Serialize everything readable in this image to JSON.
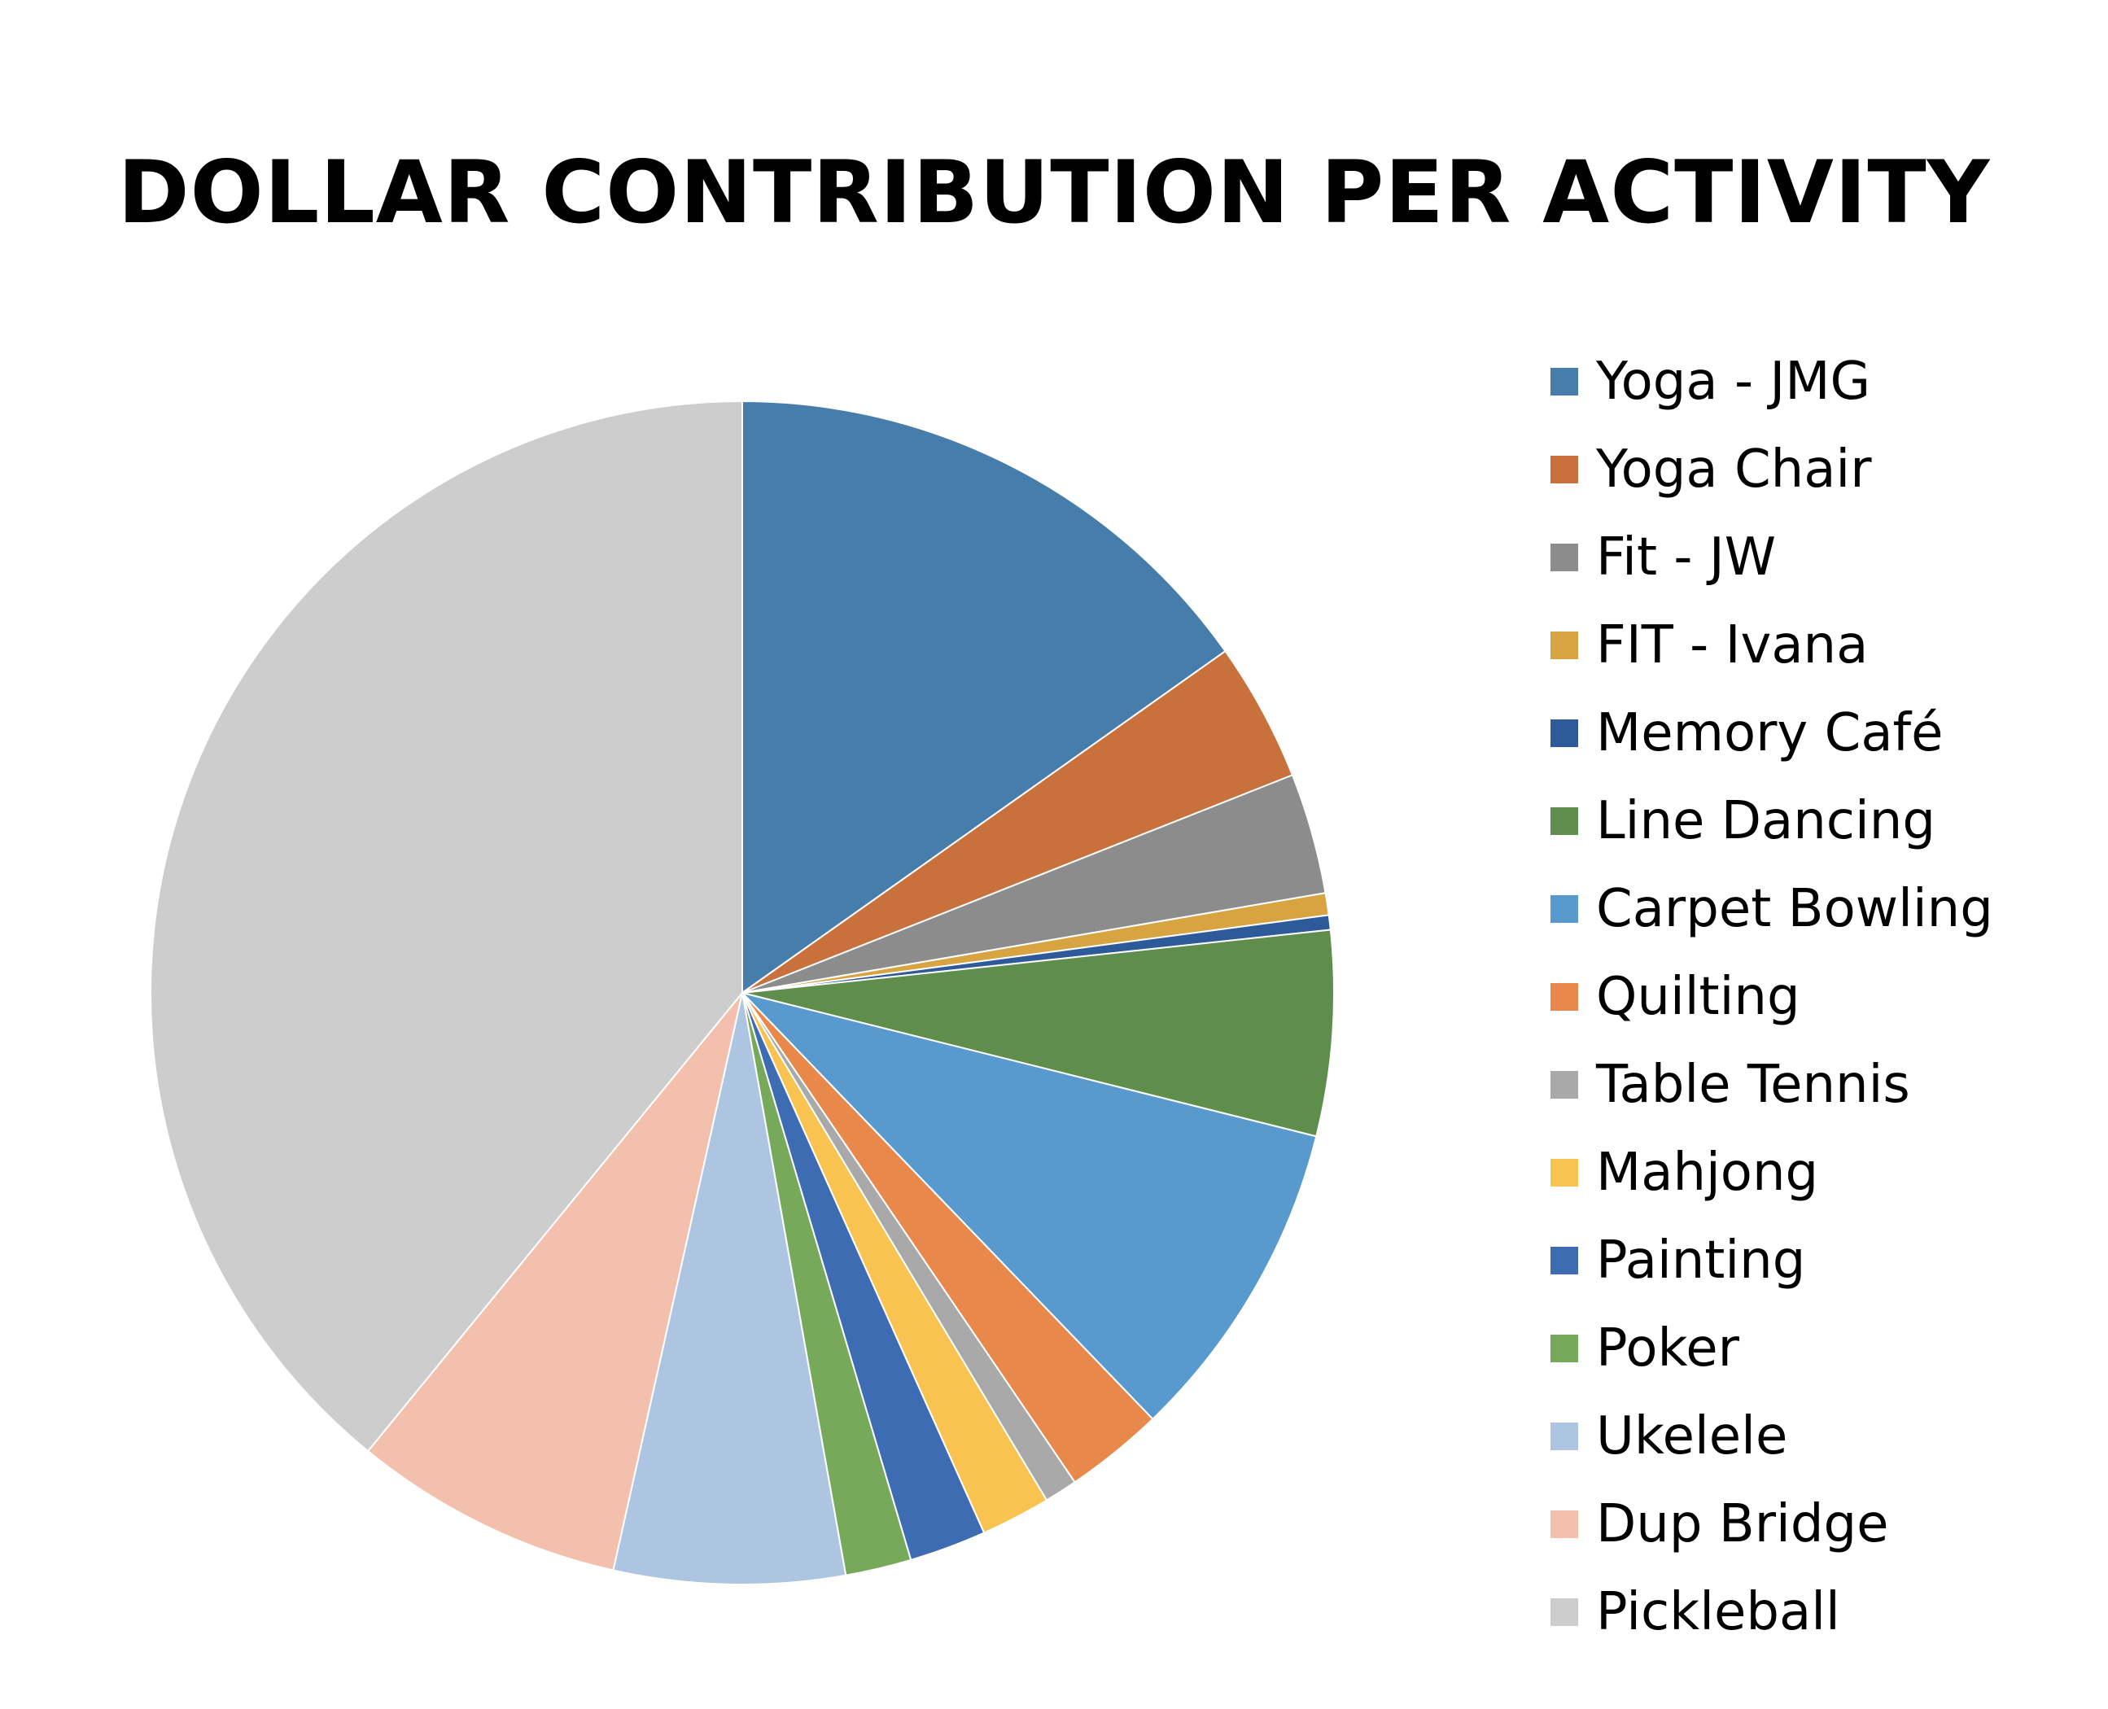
{
  "chart_data": {
    "type": "pie",
    "title": "DOLLAR CONTRIBUTION PER ACTIVITY",
    "legend_position": "right",
    "start_angle": "12 o'clock",
    "direction": "clockwise",
    "categories": [
      "Yoga - JMG",
      "Yoga Chair",
      "Fit - JW",
      "FIT - Ivana",
      "Memory Café",
      "Line Dancing",
      "Carpet Bowling",
      "Quilting",
      "Table Tennis",
      "Mahjong",
      "Painting",
      "Poker",
      "Ukelele",
      "Dup Bridge",
      "Pickleball"
    ],
    "values": [
      15.2,
      3.8,
      3.3,
      0.6,
      0.4,
      5.6,
      8.9,
      2.7,
      0.9,
      1.9,
      2.1,
      1.8,
      6.3,
      7.4,
      39.1
    ],
    "colors": [
      "#477DAA",
      "#C8713D",
      "#8C8C8C",
      "#D8A442",
      "#2E5A99",
      "#5F8D4B",
      "#599ACE",
      "#E8884B",
      "#A9A9A9",
      "#F8C350",
      "#3D6CB2",
      "#77A95B",
      "#AEC5E1",
      "#F3C0AD",
      "#CDCDCD"
    ]
  }
}
